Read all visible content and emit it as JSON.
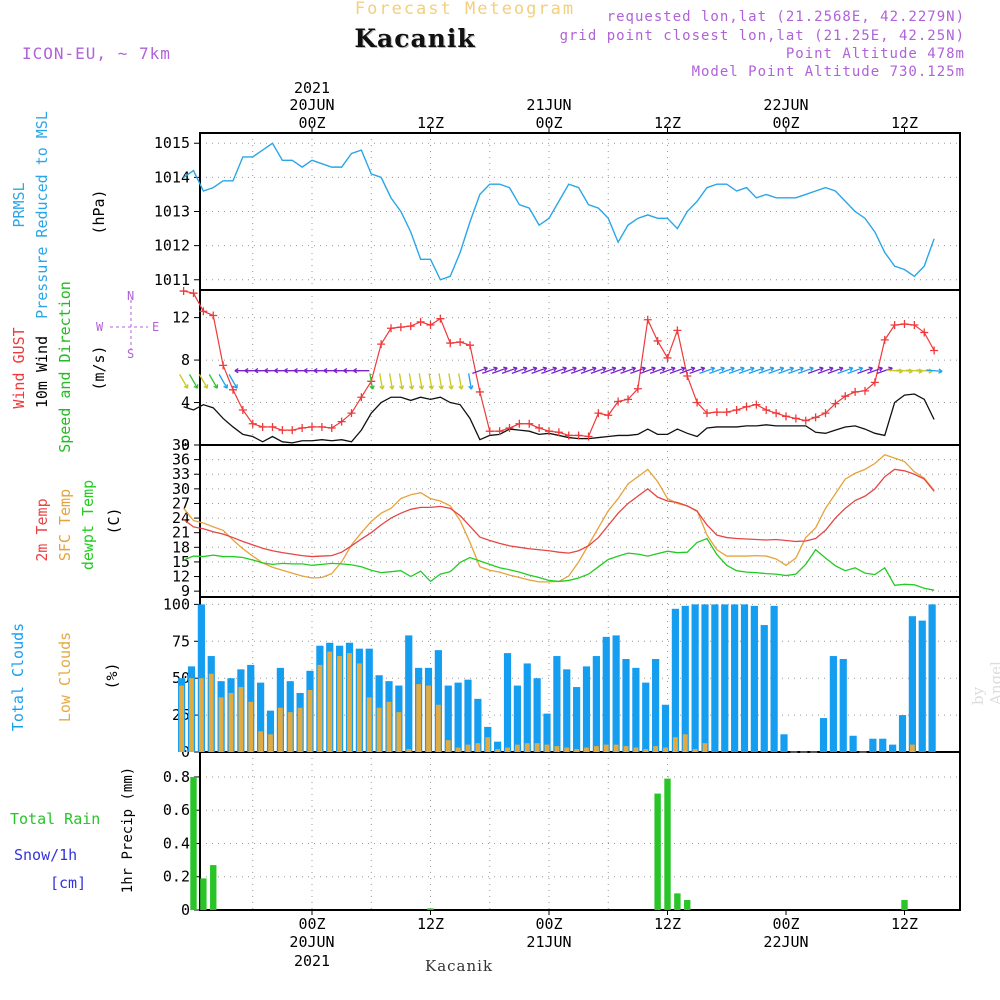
{
  "header": {
    "chart_title": "Forecast Meteogram",
    "location": "Kacanik",
    "model": "ICON-EU, ~ 7km",
    "requested": "requested lon,lat (21.2568E, 42.2279N)",
    "grid_point": "grid point closest lon,lat (21.25E, 42.25N)",
    "point_altitude": "Point Altitude 478m",
    "model_altitude": "Model Point Altitude 730.125m"
  },
  "footer": {
    "location": "Kacanik",
    "watermark": "by Angel"
  },
  "colors": {
    "pressure": "#2aa6e8",
    "gust": "#f0393a",
    "wind10m": "#111111",
    "temp2m": "#e64646",
    "sfc_temp": "#e6a33c",
    "dewpt": "#22cc22",
    "total_clouds": "#159ef0",
    "low_clouds": "#e2aa42",
    "rain": "#28c428",
    "snow_label": "#3333dd",
    "grid": "#999999",
    "purple": "#b062d8"
  },
  "chart_data": [
    {
      "type": "line",
      "title": "PRMSL Pressure Reduced to MSL",
      "ylabel": "(hPa)",
      "ylim": [
        1010.7,
        1015.3
      ],
      "yticks": [
        1011,
        1012,
        1013,
        1014,
        1015
      ],
      "series": [
        {
          "name": "PRMSL",
          "values": [
            1014.0,
            1014.2,
            1013.6,
            1013.7,
            1013.9,
            1013.9,
            1014.6,
            1014.6,
            1014.8,
            1015.0,
            1014.5,
            1014.5,
            1014.3,
            1014.5,
            1014.4,
            1014.3,
            1014.3,
            1014.7,
            1014.8,
            1014.1,
            1014.0,
            1013.4,
            1013.0,
            1012.4,
            1011.6,
            1011.6,
            1011.0,
            1011.1,
            1011.8,
            1012.7,
            1013.5,
            1013.8,
            1013.8,
            1013.7,
            1013.2,
            1013.1,
            1012.6,
            1012.8,
            1013.3,
            1013.8,
            1013.7,
            1013.2,
            1013.1,
            1012.8,
            1012.1,
            1012.6,
            1012.8,
            1012.9,
            1012.8,
            1012.8,
            1012.5,
            1013.0,
            1013.3,
            1013.7,
            1013.8,
            1013.8,
            1013.6,
            1013.7,
            1013.4,
            1013.5,
            1013.4,
            1013.4,
            1013.4,
            1013.5,
            1013.6,
            1013.7,
            1013.6,
            1013.3,
            1013.0,
            1012.8,
            1012.4,
            1011.8,
            1011.4,
            1011.3,
            1011.1,
            1011.4,
            1012.2
          ]
        }
      ]
    },
    {
      "type": "line",
      "title": "Wind GUST / 10m Wind Speed and Direction",
      "ylabel": "(m/s)",
      "ylim": [
        0,
        14.6
      ],
      "yticks": [
        0,
        4,
        8,
        12
      ],
      "compass": {
        "w": "W",
        "e": "E",
        "n": "N",
        "s": "S"
      },
      "series": [
        {
          "name": "Wind GUST",
          "values": [
            14.5,
            14.3,
            12.6,
            12.2,
            7.5,
            5.2,
            3.3,
            2.0,
            1.7,
            1.7,
            1.4,
            1.4,
            1.6,
            1.7,
            1.7,
            1.6,
            2.2,
            3.0,
            4.5,
            6.0,
            9.5,
            11.0,
            11.1,
            11.2,
            11.6,
            11.3,
            11.9,
            9.6,
            9.7,
            9.4,
            5.0,
            1.3,
            1.3,
            1.6,
            2.0,
            2.0,
            1.6,
            1.3,
            1.2,
            0.9,
            0.9,
            0.8,
            3.0,
            2.8,
            4.1,
            4.3,
            5.3,
            11.8,
            9.8,
            8.2,
            10.8,
            6.5,
            4.0,
            3.0,
            3.1,
            3.1,
            3.3,
            3.6,
            3.8,
            3.3,
            3.0,
            2.7,
            2.5,
            2.3,
            2.6,
            3.0,
            3.9,
            4.6,
            5.0,
            5.1,
            5.9,
            9.9,
            11.3,
            11.4,
            11.3,
            10.6,
            8.9
          ]
        },
        {
          "name": "10m Wind",
          "values": [
            3.6,
            3.3,
            3.8,
            3.5,
            2.5,
            1.7,
            1.0,
            0.8,
            0.3,
            0.8,
            0.3,
            0.2,
            0.4,
            0.4,
            0.5,
            0.4,
            0.5,
            0.3,
            1.4,
            3.0,
            4.0,
            4.5,
            4.5,
            4.2,
            4.5,
            4.3,
            4.5,
            4.0,
            3.8,
            2.5,
            0.5,
            0.9,
            1.0,
            1.5,
            1.4,
            1.3,
            1.0,
            1.1,
            0.9,
            0.7,
            0.6,
            0.6,
            0.7,
            0.8,
            0.9,
            0.9,
            1.0,
            1.5,
            1.0,
            1.0,
            1.5,
            1.1,
            0.8,
            1.6,
            1.7,
            1.7,
            1.7,
            1.8,
            1.8,
            1.9,
            1.8,
            1.8,
            1.8,
            1.8,
            1.2,
            1.1,
            1.4,
            1.7,
            1.8,
            1.5,
            1.1,
            0.9,
            4.0,
            4.7,
            4.8,
            4.3,
            2.4
          ]
        }
      ]
    },
    {
      "type": "line",
      "title": "2m Temp / SFC Temp / dewpt Temp",
      "ylabel": "(C)",
      "ylim": [
        7.8,
        39
      ],
      "yticks": [
        9,
        12,
        15,
        18,
        21,
        24,
        27,
        30,
        33,
        36,
        39
      ],
      "series": [
        {
          "name": "2m Temp",
          "values": [
            23.7,
            22.2,
            21.8,
            21.2,
            20.7,
            20.0,
            19.2,
            18.5,
            17.8,
            17.3,
            16.9,
            16.6,
            16.3,
            16.1,
            16.2,
            16.3,
            17.0,
            18.3,
            19.7,
            21.0,
            22.6,
            24.0,
            25.0,
            25.8,
            26.2,
            26.2,
            26.4,
            26.0,
            24.5,
            22.3,
            20.1,
            19.4,
            18.8,
            18.3,
            18.0,
            17.7,
            17.5,
            17.3,
            17.0,
            16.8,
            17.3,
            18.3,
            20.0,
            22.5,
            25.0,
            27.0,
            28.5,
            30.0,
            28.3,
            27.5,
            27.2,
            26.5,
            25.4,
            22.6,
            20.5,
            20.0,
            19.8,
            19.7,
            19.6,
            19.5,
            19.6,
            19.4,
            19.2,
            19.3,
            19.8,
            21.5,
            24.0,
            26.0,
            27.6,
            28.5,
            30.0,
            32.5,
            34.0,
            33.7,
            33.0,
            32.0,
            29.5
          ]
        },
        {
          "name": "SFC Temp",
          "values": [
            26.0,
            23.5,
            23.0,
            22.2,
            21.5,
            19.5,
            17.7,
            16.2,
            14.8,
            13.9,
            13.3,
            12.7,
            12.1,
            11.7,
            11.8,
            12.6,
            15.0,
            18.5,
            21.0,
            23.3,
            25.0,
            26.0,
            28.0,
            28.8,
            29.2,
            28.0,
            27.5,
            26.5,
            23.5,
            19.0,
            14.0,
            13.3,
            12.9,
            12.3,
            11.8,
            11.3,
            10.9,
            10.9,
            11.0,
            12.1,
            15.0,
            18.5,
            22.0,
            25.5,
            28.0,
            31.0,
            32.5,
            34.0,
            31.5,
            28.0,
            27.0,
            26.5,
            25.5,
            20.5,
            17.5,
            16.2,
            16.2,
            16.2,
            16.3,
            16.2,
            15.6,
            14.3,
            15.8,
            20.0,
            22.0,
            26.0,
            29.0,
            32.0,
            33.2,
            34.0,
            35.2,
            37.0,
            36.3,
            35.6,
            33.5,
            32.2,
            29.7
          ]
        },
        {
          "name": "dewpt Temp",
          "values": [
            15.4,
            16.2,
            16.1,
            16.4,
            16.1,
            16.1,
            15.9,
            15.4,
            14.8,
            14.5,
            14.7,
            14.6,
            14.6,
            14.3,
            14.5,
            14.7,
            14.6,
            14.4,
            14.0,
            13.3,
            12.8,
            13.0,
            13.2,
            12.0,
            13.1,
            11.0,
            12.5,
            13.0,
            14.9,
            15.9,
            15.2,
            14.5,
            13.8,
            13.4,
            12.9,
            12.3,
            11.8,
            11.2,
            11.0,
            11.2,
            11.7,
            12.5,
            14.0,
            15.5,
            16.2,
            16.8,
            16.6,
            16.2,
            16.7,
            17.2,
            16.9,
            17.0,
            19.0,
            19.8,
            16.5,
            14.3,
            13.2,
            12.9,
            12.8,
            12.6,
            12.5,
            12.2,
            12.5,
            14.5,
            17.5,
            15.8,
            14.2,
            13.2,
            13.8,
            12.7,
            12.4,
            13.8,
            10.2,
            10.4,
            10.3,
            9.6,
            9.2
          ]
        }
      ]
    },
    {
      "type": "bar",
      "title": "Total Clouds / Low Clouds",
      "ylabel": "(%)",
      "ylim": [
        0,
        105
      ],
      "yticks": [
        0,
        25,
        50,
        75,
        100
      ],
      "series": [
        {
          "name": "Total Clouds",
          "values": [
            50,
            58,
            100,
            65,
            48,
            50,
            56,
            59,
            47,
            28,
            57,
            48,
            40,
            55,
            72,
            74,
            72,
            74,
            70,
            70,
            52,
            48,
            45,
            79,
            57,
            57,
            69,
            45,
            47,
            49,
            36,
            17,
            7,
            67,
            45,
            60,
            50,
            26,
            65,
            56,
            44,
            58,
            65,
            78,
            79,
            63,
            57,
            47,
            63,
            32,
            97,
            99,
            100,
            100,
            100,
            100,
            100,
            100,
            99,
            86,
            99,
            12,
            0,
            0,
            0,
            23,
            65,
            63,
            11,
            0,
            9,
            9,
            5,
            25,
            92,
            89,
            100
          ]
        },
        {
          "name": "Low Clouds",
          "values": [
            45,
            50,
            50,
            53,
            37,
            40,
            44,
            34,
            14,
            12,
            30,
            27,
            30,
            42,
            59,
            68,
            65,
            67,
            60,
            37,
            30,
            34,
            27,
            2,
            46,
            45,
            32,
            8,
            3,
            5,
            6,
            10,
            2,
            3,
            5,
            6,
            6,
            5,
            4,
            3,
            2,
            3,
            4,
            5,
            5,
            4,
            3,
            2,
            4,
            3,
            10,
            12,
            2,
            6,
            0,
            0,
            0,
            0,
            0,
            0,
            0,
            0,
            0,
            0,
            0,
            0,
            0,
            0,
            0,
            0,
            0,
            0,
            0,
            0,
            5,
            0,
            0
          ]
        }
      ]
    },
    {
      "type": "bar",
      "title": "1hr Precip (mm)",
      "ylabel": "1hr Precip (mm)",
      "ylim": [
        0,
        0.95
      ],
      "yticks": [
        0,
        0.2,
        0.4,
        0.6,
        0.8
      ],
      "ytick_labels": [
        "0",
        "0.2",
        "0.4",
        "0.6",
        "0.8"
      ],
      "series": [
        {
          "name": "Total Rain",
          "values": [
            0,
            0.8,
            0.19,
            0.27,
            0,
            0,
            0,
            0,
            0,
            0,
            0,
            0,
            0,
            0,
            0,
            0,
            0,
            0,
            0,
            0,
            0,
            0,
            0,
            0,
            0,
            0.01,
            0,
            0,
            0,
            0,
            0,
            0,
            0,
            0,
            0,
            0,
            0,
            0,
            0,
            0,
            0,
            0,
            0,
            0,
            0,
            0,
            0,
            0,
            0.7,
            0.79,
            0.1,
            0.06,
            0,
            0,
            0,
            0,
            0,
            0,
            0,
            0,
            0,
            0,
            0,
            0,
            0,
            0,
            0,
            0,
            0,
            0,
            0,
            0,
            0,
            0.06,
            0,
            0,
            0
          ]
        }
      ]
    }
  ],
  "time_axis": {
    "top": [
      {
        "day": "20JUN",
        "year": "2021",
        "hour": "00Z"
      },
      {
        "day": "",
        "year": "",
        "hour": "12Z"
      },
      {
        "day": "21JUN",
        "year": "",
        "hour": "00Z"
      },
      {
        "day": "",
        "year": "",
        "hour": "12Z"
      },
      {
        "day": "22JUN",
        "year": "",
        "hour": "00Z"
      },
      {
        "day": "",
        "year": "",
        "hour": "12Z"
      }
    ],
    "bottom": [
      {
        "day": "20JUN",
        "year": "2021",
        "hour": "00Z"
      },
      {
        "day": "",
        "year": "",
        "hour": "12Z"
      },
      {
        "day": "21JUN",
        "year": "",
        "hour": "00Z"
      },
      {
        "day": "",
        "year": "",
        "hour": "12Z"
      },
      {
        "day": "22JUN",
        "year": "",
        "hour": "00Z"
      },
      {
        "day": "",
        "year": "",
        "hour": "12Z"
      }
    ]
  },
  "panel_labels": {
    "pressure": [
      "PRMSL",
      "Pressure Reduced to MSL",
      "(hPa)"
    ],
    "wind": [
      "Wind GUST",
      "10m Wind",
      "Speed and Direction",
      "(m/s)"
    ],
    "temp": [
      "2m Temp",
      "SFC Temp",
      "dewpt Temp",
      "(C)"
    ],
    "cloud": [
      "Total Clouds",
      "Low Clouds",
      "(%)"
    ],
    "precip": [
      "Total Rain",
      "Snow/1h",
      "[cm]"
    ]
  }
}
